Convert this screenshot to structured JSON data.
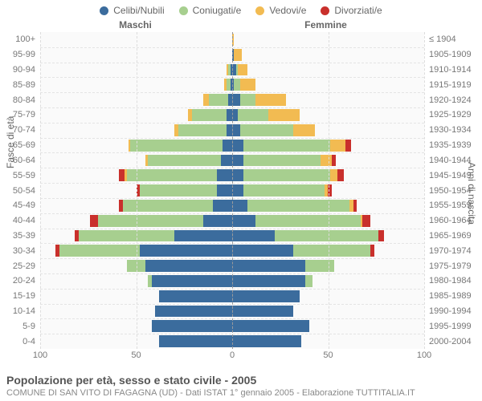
{
  "legend": [
    {
      "label": "Celibi/Nubili",
      "color": "#3b6c9d"
    },
    {
      "label": "Coniugati/e",
      "color": "#a7cf8f"
    },
    {
      "label": "Vedovi/e",
      "color": "#f2bb52"
    },
    {
      "label": "Divorziati/e",
      "color": "#c9302c"
    }
  ],
  "header_m": "Maschi",
  "header_f": "Femmine",
  "axis_left_title": "Fasce di età",
  "axis_right_title": "Anni di nascita",
  "title": "Popolazione per età, sesso e stato civile - 2005",
  "subtitle": "COMUNE DI SAN VITO DI FAGAGNA (UD) - Dati ISTAT 1° gennaio 2005 - Elaborazione TUTTITALIA.IT",
  "xmax": 100,
  "xticks": [
    100,
    50,
    0,
    50,
    100
  ],
  "age_labels": [
    "100+",
    "95-99",
    "90-94",
    "85-89",
    "80-84",
    "75-79",
    "70-74",
    "65-69",
    "60-64",
    "55-59",
    "50-54",
    "45-49",
    "40-44",
    "35-39",
    "30-34",
    "25-29",
    "20-24",
    "15-19",
    "10-14",
    "5-9",
    "0-4"
  ],
  "birth_labels": [
    "≤ 1904",
    "1905-1909",
    "1910-1914",
    "1915-1919",
    "1920-1924",
    "1925-1929",
    "1930-1934",
    "1935-1939",
    "1940-1944",
    "1945-1949",
    "1950-1954",
    "1955-1959",
    "1960-1964",
    "1965-1969",
    "1970-1974",
    "1975-1979",
    "1980-1984",
    "1985-1989",
    "1990-1994",
    "1995-1999",
    "2000-2004"
  ],
  "rows": [
    {
      "m": [
        0,
        0,
        0,
        0
      ],
      "f": [
        0,
        0,
        1,
        0
      ]
    },
    {
      "m": [
        0,
        0,
        0,
        0
      ],
      "f": [
        1,
        0,
        4,
        0
      ]
    },
    {
      "m": [
        1,
        1,
        1,
        0
      ],
      "f": [
        2,
        1,
        5,
        0
      ]
    },
    {
      "m": [
        1,
        2,
        1,
        0
      ],
      "f": [
        1,
        3,
        8,
        0
      ]
    },
    {
      "m": [
        2,
        10,
        3,
        0
      ],
      "f": [
        4,
        8,
        16,
        0
      ]
    },
    {
      "m": [
        3,
        18,
        2,
        0
      ],
      "f": [
        3,
        16,
        16,
        0
      ]
    },
    {
      "m": [
        3,
        25,
        2,
        0
      ],
      "f": [
        4,
        28,
        11,
        0
      ]
    },
    {
      "m": [
        5,
        48,
        1,
        0
      ],
      "f": [
        6,
        45,
        8,
        3
      ]
    },
    {
      "m": [
        6,
        38,
        1,
        0
      ],
      "f": [
        6,
        40,
        6,
        2
      ]
    },
    {
      "m": [
        8,
        47,
        1,
        3
      ],
      "f": [
        6,
        45,
        4,
        3
      ]
    },
    {
      "m": [
        8,
        40,
        0,
        2
      ],
      "f": [
        6,
        42,
        2,
        2
      ]
    },
    {
      "m": [
        10,
        47,
        0,
        2
      ],
      "f": [
        8,
        53,
        2,
        2
      ]
    },
    {
      "m": [
        15,
        55,
        0,
        4
      ],
      "f": [
        12,
        55,
        1,
        4
      ]
    },
    {
      "m": [
        30,
        50,
        0,
        2
      ],
      "f": [
        22,
        54,
        0,
        3
      ]
    },
    {
      "m": [
        48,
        42,
        0,
        2
      ],
      "f": [
        32,
        40,
        0,
        2
      ]
    },
    {
      "m": [
        45,
        10,
        0,
        0
      ],
      "f": [
        38,
        15,
        0,
        0
      ]
    },
    {
      "m": [
        42,
        2,
        0,
        0
      ],
      "f": [
        38,
        4,
        0,
        0
      ]
    },
    {
      "m": [
        38,
        0,
        0,
        0
      ],
      "f": [
        35,
        0,
        0,
        0
      ]
    },
    {
      "m": [
        40,
        0,
        0,
        0
      ],
      "f": [
        32,
        0,
        0,
        0
      ]
    },
    {
      "m": [
        42,
        0,
        0,
        0
      ],
      "f": [
        40,
        0,
        0,
        0
      ]
    },
    {
      "m": [
        38,
        0,
        0,
        0
      ],
      "f": [
        36,
        0,
        0,
        0
      ]
    }
  ],
  "colors": {
    "bg": "#ffffff",
    "grid": "#dddddd"
  }
}
